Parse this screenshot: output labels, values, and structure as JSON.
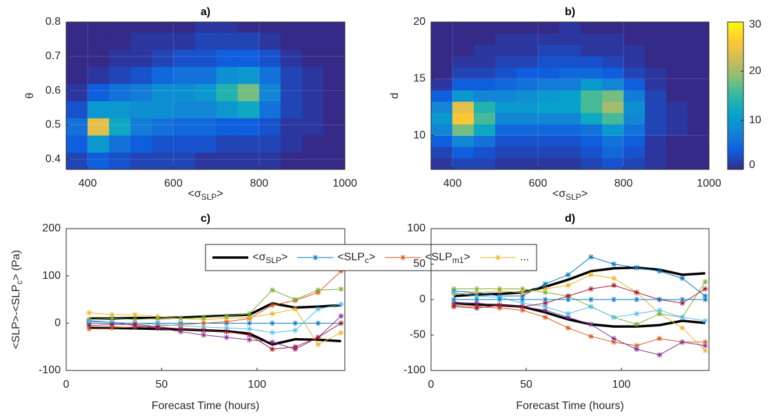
{
  "chart_data": [
    {
      "type": "heatmap",
      "title": "a)",
      "xlabel": [
        "<σ",
        "SLP",
        ">"
      ],
      "ylabel": [
        "θ"
      ],
      "x_bins": [
        350,
        400,
        450,
        500,
        550,
        600,
        650,
        700,
        750,
        800,
        850,
        900,
        950,
        1000
      ],
      "y_bins": [
        0.37,
        0.42,
        0.47,
        0.52,
        0.57,
        0.62,
        0.67,
        0.72,
        0.77,
        0.8
      ],
      "z": [
        [
          2,
          4,
          3,
          2,
          2,
          2,
          1,
          1,
          1,
          1,
          0,
          0,
          0
        ],
        [
          4,
          10,
          6,
          4,
          3,
          3,
          3,
          2,
          2,
          2,
          1,
          0,
          0
        ],
        [
          6,
          24,
          12,
          7,
          6,
          5,
          5,
          4,
          4,
          3,
          1,
          1,
          0
        ],
        [
          3,
          10,
          10,
          9,
          9,
          8,
          8,
          10,
          12,
          6,
          2,
          1,
          0
        ],
        [
          1,
          4,
          6,
          7,
          9,
          9,
          10,
          14,
          18,
          8,
          2,
          1,
          0
        ],
        [
          0,
          1,
          2,
          3,
          5,
          6,
          6,
          9,
          10,
          6,
          2,
          1,
          0
        ],
        [
          0,
          0,
          1,
          1,
          2,
          3,
          3,
          4,
          4,
          3,
          1,
          0,
          0
        ],
        [
          0,
          0,
          0,
          1,
          1,
          1,
          2,
          2,
          2,
          1,
          0,
          0,
          0
        ],
        [
          0,
          0,
          0,
          0,
          0,
          0,
          1,
          1,
          0,
          0,
          0,
          0,
          0
        ]
      ],
      "xlim": [
        350,
        1000
      ],
      "ylim": [
        0.37,
        0.8
      ],
      "xticks": [
        400,
        600,
        800,
        1000
      ],
      "yticks": [
        0.4,
        0.5,
        0.6,
        0.7,
        0.8
      ],
      "clim": [
        0,
        30
      ],
      "grid": true,
      "colormap": [
        "#352a87",
        "#0f5cdd",
        "#1481d6",
        "#06a4ca",
        "#2eb7a4",
        "#87bf77",
        "#d1bb59",
        "#fec832",
        "#f9fb0e"
      ]
    },
    {
      "type": "heatmap",
      "title": "b)",
      "xlabel": [
        "<σ",
        "SLP",
        ">"
      ],
      "ylabel": [
        "d"
      ],
      "x_bins": [
        350,
        400,
        450,
        500,
        550,
        600,
        650,
        700,
        750,
        800,
        850,
        900,
        950,
        1000
      ],
      "y_bins": [
        7,
        8,
        9,
        10,
        11,
        12,
        13,
        14,
        15,
        16,
        17,
        18,
        19,
        20
      ],
      "z": [
        [
          1,
          2,
          2,
          1,
          1,
          1,
          1,
          2,
          3,
          2,
          1,
          0,
          0
        ],
        [
          2,
          4,
          3,
          2,
          2,
          2,
          2,
          3,
          5,
          3,
          1,
          0,
          0
        ],
        [
          4,
          8,
          6,
          3,
          3,
          3,
          3,
          4,
          6,
          4,
          1,
          0,
          0
        ],
        [
          8,
          18,
          12,
          5,
          5,
          5,
          5,
          6,
          10,
          6,
          2,
          1,
          0
        ],
        [
          10,
          26,
          16,
          8,
          8,
          8,
          8,
          12,
          16,
          8,
          2,
          1,
          0
        ],
        [
          8,
          24,
          14,
          10,
          10,
          11,
          11,
          16,
          20,
          9,
          2,
          1,
          0
        ],
        [
          4,
          10,
          8,
          8,
          9,
          10,
          11,
          16,
          18,
          7,
          2,
          0,
          0
        ],
        [
          1,
          4,
          4,
          5,
          6,
          7,
          7,
          10,
          8,
          4,
          1,
          0,
          0
        ],
        [
          0,
          2,
          2,
          3,
          4,
          4,
          5,
          5,
          4,
          2,
          1,
          0,
          0
        ],
        [
          0,
          1,
          1,
          2,
          2,
          3,
          3,
          3,
          2,
          1,
          0,
          0,
          0
        ],
        [
          0,
          0,
          1,
          1,
          1,
          2,
          2,
          1,
          1,
          1,
          0,
          0,
          0
        ],
        [
          0,
          0,
          0,
          1,
          1,
          1,
          1,
          1,
          1,
          0,
          0,
          0,
          0
        ],
        [
          0,
          0,
          0,
          0,
          0,
          0,
          1,
          0,
          0,
          0,
          0,
          0,
          0
        ]
      ],
      "xlim": [
        350,
        1000
      ],
      "ylim": [
        7,
        20
      ],
      "xticks": [
        400,
        600,
        800,
        1000
      ],
      "yticks": [
        10,
        15,
        20
      ],
      "clim": [
        0,
        30
      ],
      "grid": true,
      "colorbar_ticks": [
        0,
        10,
        20,
        30
      ],
      "colormap": [
        "#352a87",
        "#0f5cdd",
        "#1481d6",
        "#06a4ca",
        "#2eb7a4",
        "#87bf77",
        "#d1bb59",
        "#fec832",
        "#f9fb0e"
      ]
    },
    {
      "type": "line",
      "title": "c)",
      "xlabel": [
        "Forecast Time (hours)"
      ],
      "ylabel": [
        "<SLP>-<SLP",
        "c",
        ">   (Pa)"
      ],
      "x": [
        12,
        24,
        36,
        48,
        60,
        72,
        84,
        96,
        108,
        120,
        132,
        144
      ],
      "xlim": [
        0,
        146
      ],
      "ylim": [
        -100,
        200
      ],
      "xticks": [
        0,
        50,
        100
      ],
      "yticks": [
        -100,
        0,
        100,
        200
      ],
      "legend": true,
      "series": [
        {
          "name": [
            "<σ",
            "SLP",
            ">"
          ],
          "color": "#000000",
          "values": [
            10,
            10,
            11,
            11,
            12,
            14,
            16,
            18,
            42,
            33,
            35,
            38
          ],
          "lower_values": [
            -10,
            -10,
            -11,
            -12,
            -13,
            -15,
            -17,
            -22,
            -45,
            -34,
            -35,
            -38
          ]
        },
        {
          "name": [
            "<SLP",
            "c",
            ">"
          ],
          "color": "#0072bd",
          "values": [
            0,
            0,
            0,
            0,
            0,
            0,
            0,
            0,
            0,
            0,
            0,
            0
          ]
        },
        {
          "name": [
            "<SLP",
            "m1",
            ">"
          ],
          "color": "#d95319",
          "values": [
            -12,
            -10,
            -8,
            -6,
            -3,
            0,
            3,
            10,
            38,
            48,
            65,
            110
          ]
        },
        {
          "name": [
            "..."
          ],
          "color": "#edb120",
          "values": [
            22,
            18,
            18,
            14,
            10,
            8,
            10,
            12,
            20,
            30,
            -45,
            -20
          ]
        },
        {
          "color": "#7e2f8e",
          "values": [
            5,
            2,
            -5,
            -10,
            -18,
            -25,
            -30,
            -35,
            -40,
            -55,
            -30,
            15
          ]
        },
        {
          "color": "#77ac30",
          "values": [
            8,
            10,
            8,
            10,
            10,
            12,
            15,
            20,
            70,
            50,
            70,
            72
          ]
        },
        {
          "color": "#4dbeee",
          "values": [
            3,
            2,
            0,
            -3,
            -5,
            -8,
            -10,
            -12,
            -20,
            -15,
            30,
            40
          ]
        },
        {
          "color": "#a2142f",
          "values": [
            -5,
            -3,
            -2,
            -8,
            -12,
            -15,
            -18,
            -25,
            -55,
            -50,
            -30,
            0
          ]
        }
      ]
    },
    {
      "type": "line",
      "title": "d)",
      "xlabel": [
        "Forecast Time (hours)"
      ],
      "x": [
        12,
        24,
        36,
        48,
        60,
        72,
        84,
        96,
        108,
        120,
        132,
        144
      ],
      "xlim": [
        0,
        146
      ],
      "ylim": [
        -100,
        100
      ],
      "xticks": [
        0,
        50,
        100
      ],
      "yticks": [
        -100,
        -50,
        0,
        50,
        100
      ],
      "series": [
        {
          "color": "#000000",
          "values": [
            5,
            7,
            8,
            10,
            18,
            28,
            40,
            44,
            45,
            42,
            35,
            37
          ],
          "lower_values": [
            -5,
            -7,
            -8,
            -10,
            -18,
            -28,
            -35,
            -38,
            -38,
            -36,
            -30,
            -33
          ]
        },
        {
          "color": "#0072bd",
          "values": [
            12,
            10,
            5,
            5,
            22,
            35,
            60,
            50,
            45,
            40,
            30,
            5
          ]
        },
        {
          "color": "#d95319",
          "values": [
            -8,
            -10,
            -12,
            -15,
            -25,
            -40,
            -52,
            -60,
            -65,
            -55,
            -60,
            -60
          ]
        },
        {
          "color": "#edb120",
          "values": [
            8,
            10,
            12,
            10,
            15,
            20,
            35,
            30,
            10,
            -20,
            -40,
            -72
          ]
        },
        {
          "color": "#7e2f8e",
          "values": [
            -5,
            -5,
            -8,
            -10,
            -15,
            -25,
            -35,
            -55,
            -70,
            -78,
            -60,
            -65
          ]
        },
        {
          "color": "#77ac30",
          "values": [
            15,
            15,
            15,
            15,
            10,
            5,
            -10,
            -25,
            -35,
            -20,
            -25,
            25
          ]
        },
        {
          "color": "#4dbeee",
          "values": [
            10,
            5,
            3,
            -5,
            -10,
            -20,
            -10,
            -25,
            -20,
            -15,
            -25,
            -30
          ]
        },
        {
          "color": "#a2142f",
          "values": [
            -10,
            -12,
            -8,
            -10,
            -5,
            5,
            15,
            20,
            10,
            0,
            -5,
            15
          ]
        },
        {
          "color": "#0072bd",
          "values": [
            0,
            0,
            0,
            0,
            0,
            0,
            0,
            0,
            0,
            0,
            0,
            0
          ]
        }
      ]
    }
  ]
}
